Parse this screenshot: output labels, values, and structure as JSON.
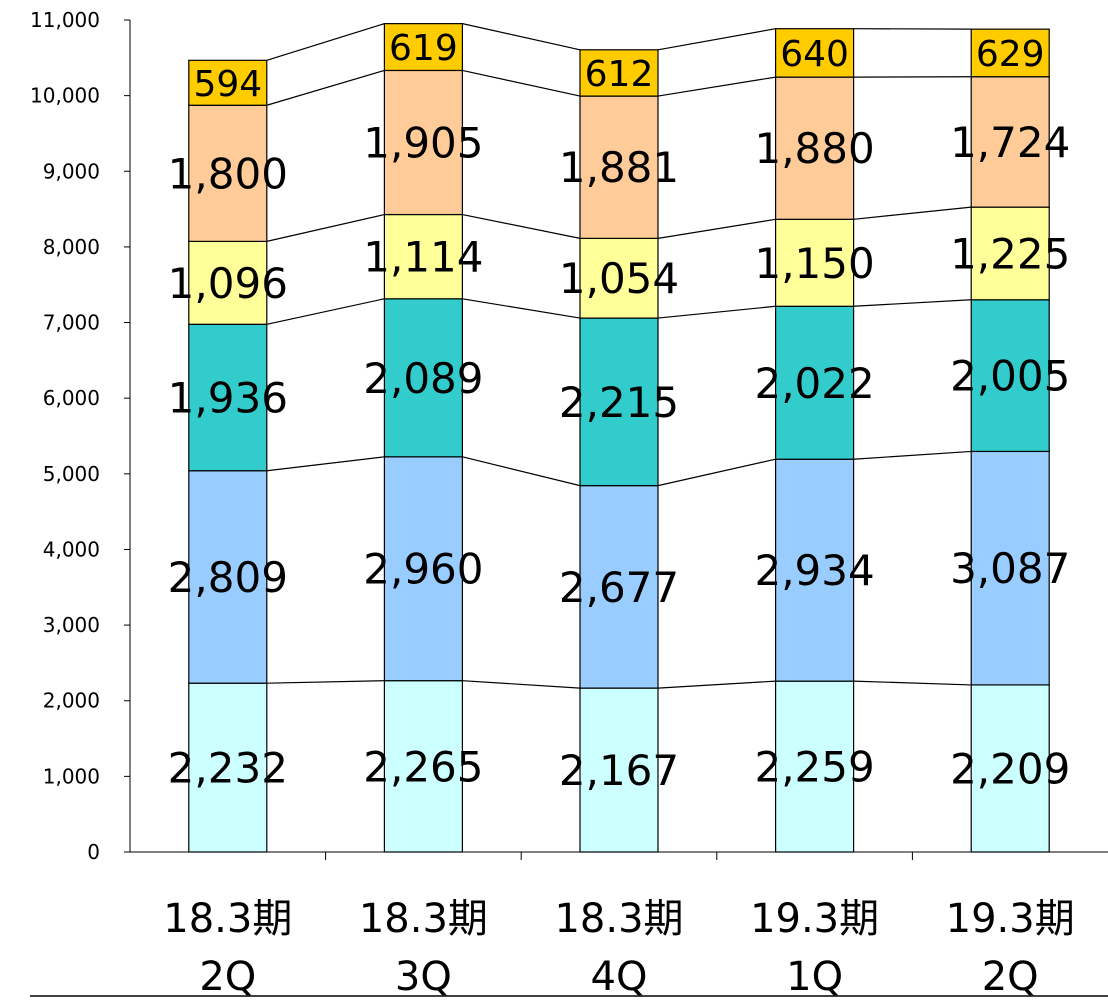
{
  "chart_data": {
    "type": "bar",
    "stacked": true,
    "categories": [
      [
        "18.3期",
        "2Q"
      ],
      [
        "18.3期",
        "3Q"
      ],
      [
        "18.3期",
        "4Q"
      ],
      [
        "19.3期",
        "1Q"
      ],
      [
        "19.3期",
        "2Q"
      ]
    ],
    "series": [
      {
        "values": [
          2232,
          2265,
          2167,
          2259,
          2209
        ],
        "labels": [
          "2,232",
          "2,265",
          "2,167",
          "2,259",
          "2,209"
        ],
        "color": "#ccffff"
      },
      {
        "values": [
          2809,
          2960,
          2677,
          2934,
          3087
        ],
        "labels": [
          "2,809",
          "2,960",
          "2,677",
          "2,934",
          "3,087"
        ],
        "color": "#99ccff"
      },
      {
        "values": [
          1936,
          2089,
          2215,
          2022,
          2005
        ],
        "labels": [
          "1,936",
          "2,089",
          "2,215",
          "2,022",
          "2,005"
        ],
        "color": "#33cccc"
      },
      {
        "values": [
          1096,
          1114,
          1054,
          1150,
          1225
        ],
        "labels": [
          "1,096",
          "1,114",
          "1,054",
          "1,150",
          "1,225"
        ],
        "color": "#ffff99"
      },
      {
        "values": [
          1800,
          1905,
          1881,
          1880,
          1724
        ],
        "labels": [
          "1,800",
          "1,905",
          "1,881",
          "1,880",
          "1,724"
        ],
        "color": "#ffcc99"
      },
      {
        "values": [
          594,
          619,
          612,
          640,
          629
        ],
        "labels": [
          "594",
          "619",
          "612",
          "640",
          "629"
        ],
        "color": "#ffcc00"
      }
    ],
    "yticks": [
      "0",
      "1,000",
      "2,000",
      "3,000",
      "4,000",
      "5,000",
      "6,000",
      "7,000",
      "8,000",
      "9,000",
      "10,000",
      "11,000"
    ],
    "ylim": [
      0,
      11000
    ],
    "series_lines": true,
    "grid": false,
    "legend": "none"
  }
}
